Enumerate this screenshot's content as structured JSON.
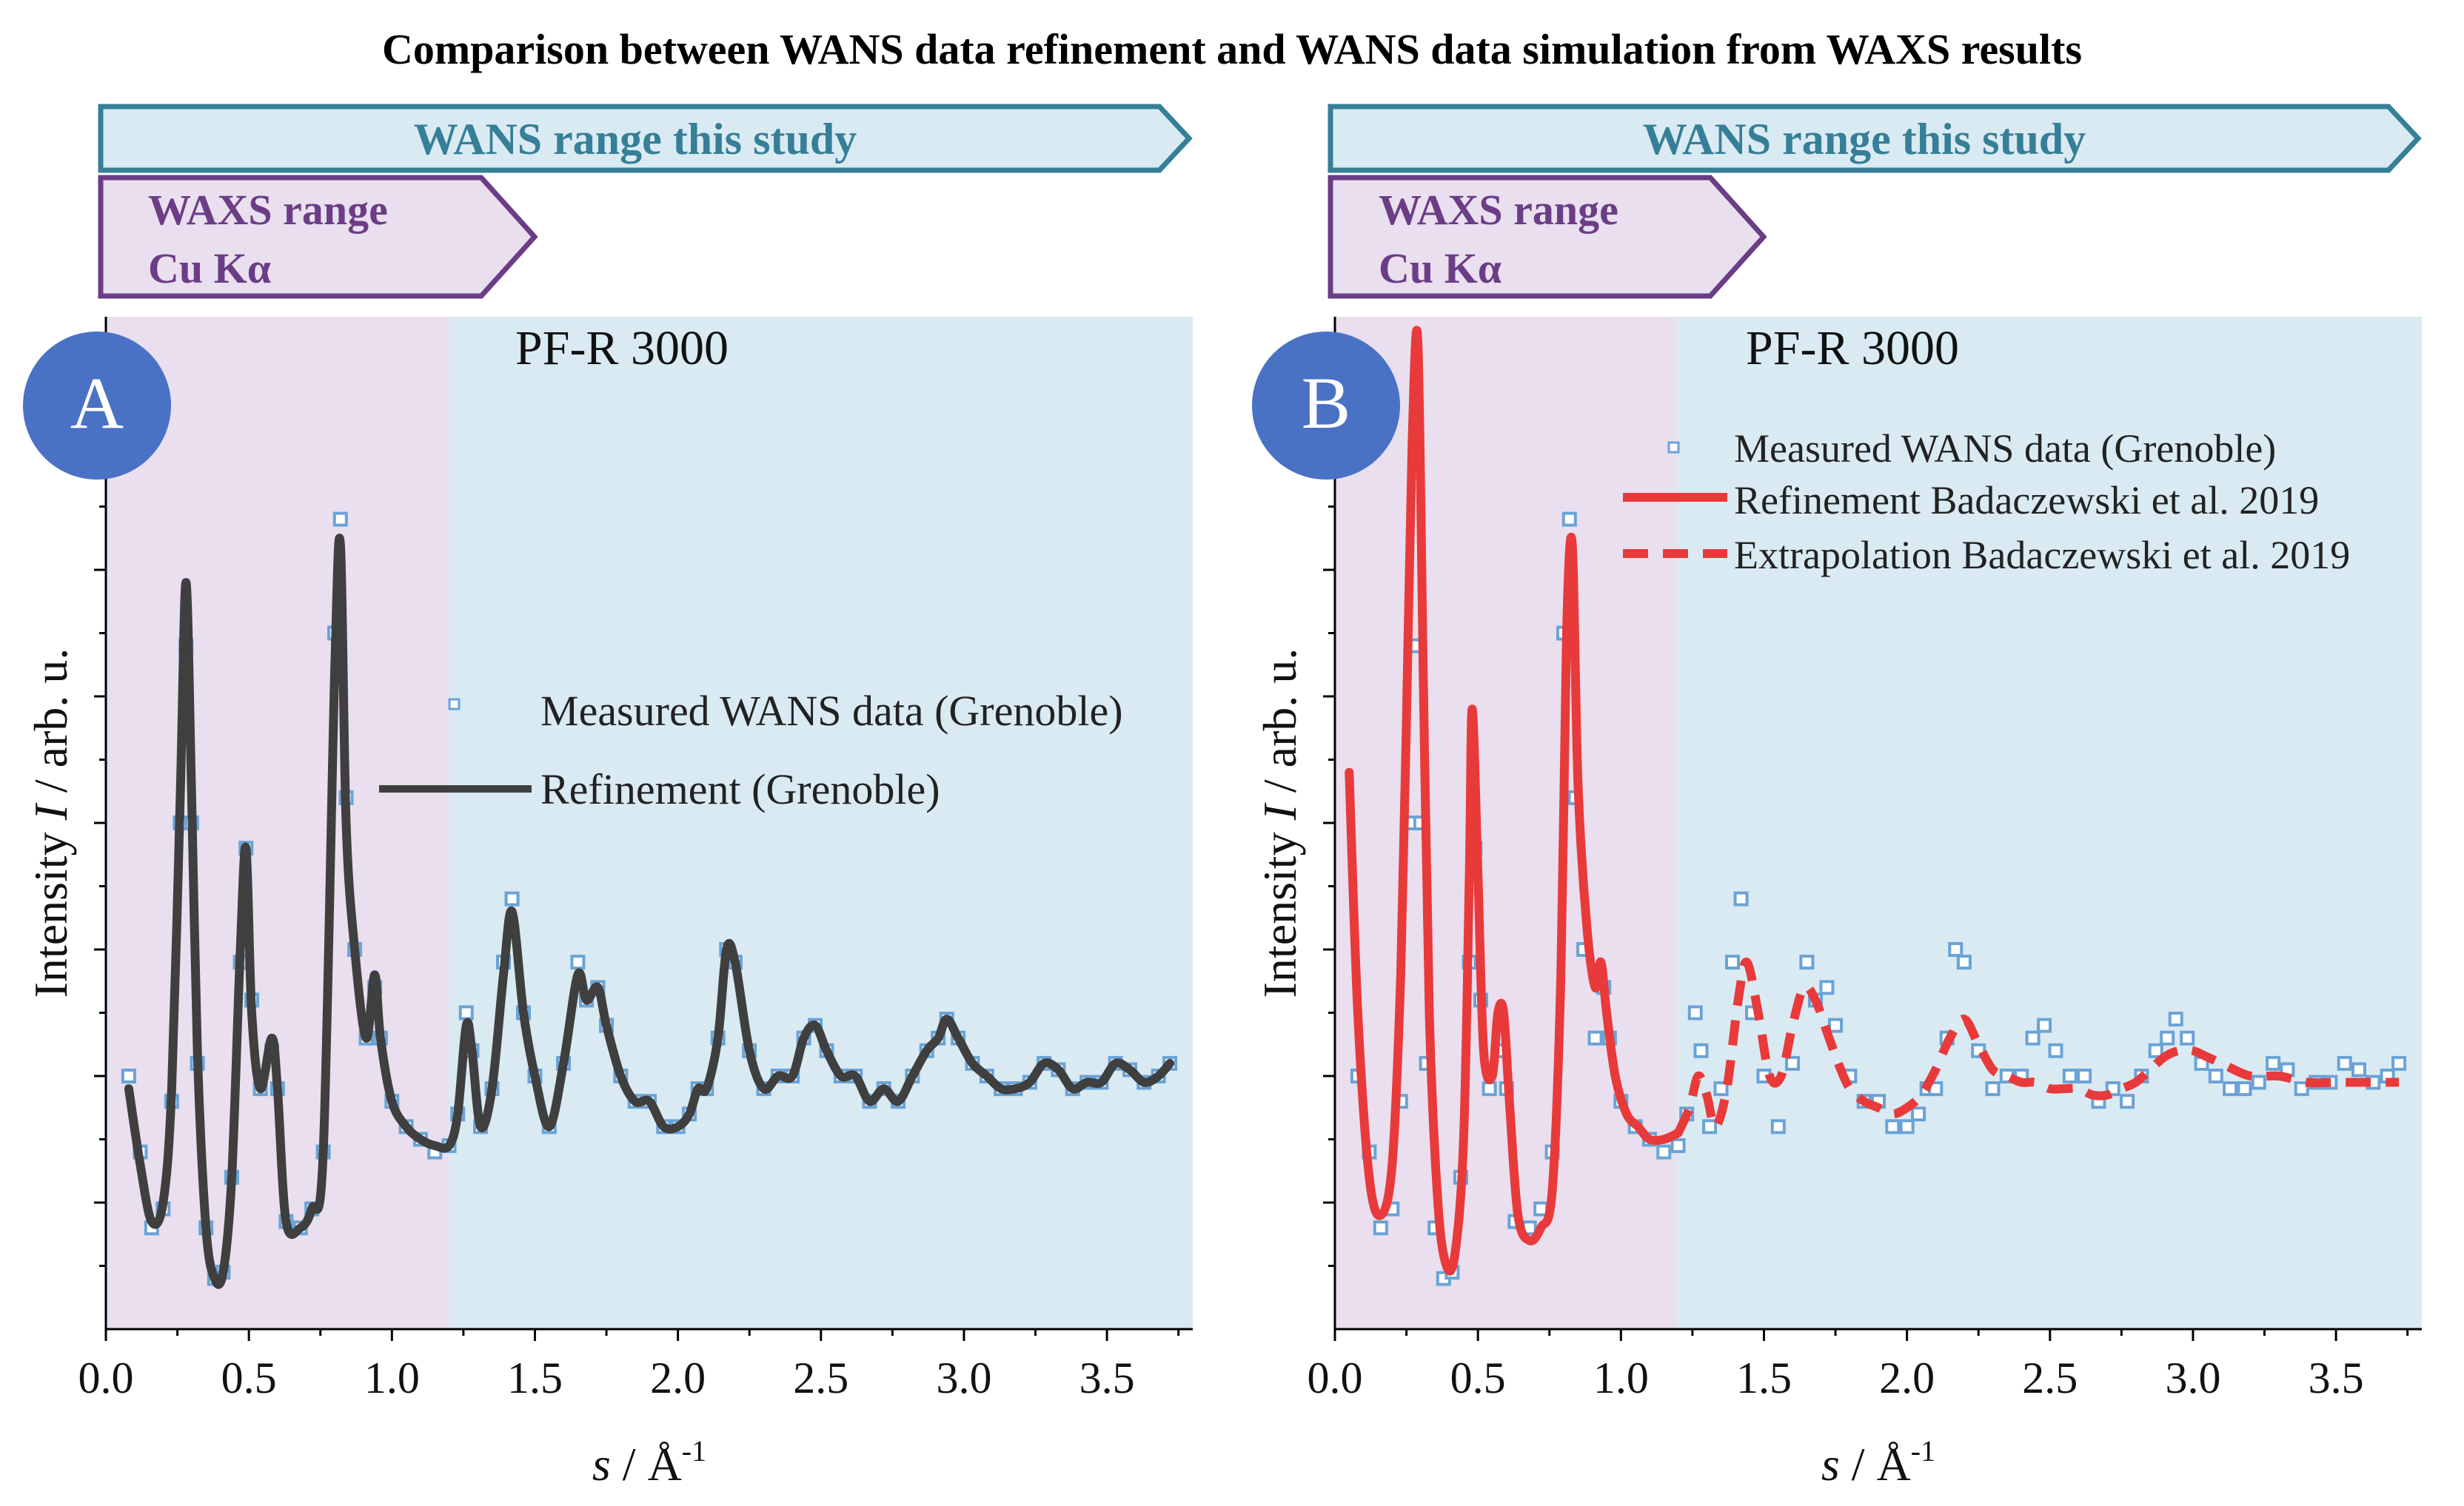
{
  "title": "Comparison between WANS data refinement and WANS data simulation from WAXS results",
  "colors": {
    "waxs_fill": "#e9dfee",
    "waxs_stroke": "#6b3d86",
    "waxs_text": "#6b3d86",
    "wans_fill": "#daeaf3",
    "wans_stroke": "#357f97",
    "wans_text": "#357f97",
    "badge": "#4a72c4",
    "measured": "#6aa3d6",
    "refine_grey": "#3f3f3f",
    "refine_red": "#e83a3a"
  },
  "chart_data": [
    {
      "type": "line",
      "panel_label": "A",
      "sample": "PF-R 3000",
      "wans_banner": "WANS range this study",
      "waxs_banner_line1": "WAXS range",
      "waxs_banner_line2": "Cu Kα",
      "xlabel_var": "s",
      "xlabel_sep": " / ",
      "xlabel_unit": "Å",
      "xlabel_exp": "-1",
      "ylabel_pre": "Intensity ",
      "ylabel_var": "I",
      "ylabel_post": " / arb. u.",
      "xlim": [
        0.0,
        3.8
      ],
      "ylim": [
        0,
        8
      ],
      "xticks": [
        "0.0",
        "0.5",
        "1.0",
        "1.5",
        "2.0",
        "2.5",
        "3.0",
        "3.5"
      ],
      "waxs_region": [
        0.0,
        1.2
      ],
      "wans_region": [
        1.2,
        3.8
      ],
      "legend": [
        {
          "label": "Measured WANS data (Grenoble)",
          "style": "squares"
        },
        {
          "label": "Refinement (Grenoble)",
          "style": "solid-grey"
        }
      ],
      "series": [
        {
          "name": "Measured WANS data (Grenoble)",
          "x": [
            0.08,
            0.12,
            0.16,
            0.2,
            0.23,
            0.26,
            0.28,
            0.3,
            0.32,
            0.35,
            0.38,
            0.41,
            0.44,
            0.47,
            0.49,
            0.51,
            0.54,
            0.58,
            0.6,
            0.63,
            0.68,
            0.72,
            0.76,
            0.8,
            0.82,
            0.84,
            0.87,
            0.91,
            0.94,
            0.96,
            1.0,
            1.05,
            1.1,
            1.15,
            1.2,
            1.23,
            1.26,
            1.28,
            1.31,
            1.35,
            1.39,
            1.42,
            1.46,
            1.5,
            1.55,
            1.6,
            1.65,
            1.68,
            1.72,
            1.75,
            1.8,
            1.85,
            1.9,
            1.95,
            2.0,
            2.04,
            2.07,
            2.1,
            2.14,
            2.17,
            2.2,
            2.25,
            2.3,
            2.35,
            2.4,
            2.44,
            2.48,
            2.52,
            2.57,
            2.62,
            2.67,
            2.72,
            2.77,
            2.82,
            2.87,
            2.91,
            2.94,
            2.98,
            3.03,
            3.08,
            3.13,
            3.18,
            3.23,
            3.28,
            3.33,
            3.38,
            3.43,
            3.48,
            3.53,
            3.58,
            3.63,
            3.68,
            3.72
          ],
          "y": [
            2.0,
            1.4,
            0.8,
            0.95,
            1.8,
            4.0,
            5.4,
            4.0,
            2.1,
            0.8,
            0.4,
            0.45,
            1.2,
            2.9,
            3.8,
            2.6,
            1.9,
            2.2,
            1.9,
            0.85,
            0.8,
            0.95,
            1.4,
            5.5,
            6.4,
            4.2,
            3.0,
            2.3,
            2.7,
            2.3,
            1.8,
            1.6,
            1.5,
            1.4,
            1.45,
            1.7,
            2.5,
            2.2,
            1.6,
            1.9,
            2.9,
            3.4,
            2.5,
            2.0,
            1.6,
            2.1,
            2.9,
            2.6,
            2.7,
            2.4,
            2.0,
            1.8,
            1.8,
            1.6,
            1.6,
            1.7,
            1.9,
            1.9,
            2.3,
            3.0,
            2.9,
            2.2,
            1.9,
            2.0,
            2.0,
            2.3,
            2.4,
            2.2,
            2.0,
            2.0,
            1.8,
            1.9,
            1.8,
            2.0,
            2.2,
            2.3,
            2.45,
            2.3,
            2.1,
            2.0,
            1.9,
            1.9,
            1.95,
            2.1,
            2.05,
            1.9,
            1.95,
            1.95,
            2.1,
            2.05,
            1.95,
            2.0,
            2.1
          ]
        },
        {
          "name": "Refinement (Grenoble)",
          "x": [
            0.08,
            0.12,
            0.16,
            0.2,
            0.23,
            0.26,
            0.28,
            0.3,
            0.32,
            0.35,
            0.38,
            0.41,
            0.44,
            0.47,
            0.49,
            0.51,
            0.54,
            0.58,
            0.6,
            0.63,
            0.68,
            0.72,
            0.76,
            0.8,
            0.82,
            0.84,
            0.87,
            0.91,
            0.94,
            0.96,
            1.0,
            1.05,
            1.1,
            1.15,
            1.2,
            1.23,
            1.26,
            1.28,
            1.31,
            1.35,
            1.39,
            1.42,
            1.46,
            1.5,
            1.55,
            1.6,
            1.65,
            1.68,
            1.72,
            1.75,
            1.8,
            1.85,
            1.9,
            1.95,
            2.0,
            2.04,
            2.07,
            2.1,
            2.14,
            2.17,
            2.2,
            2.25,
            2.3,
            2.35,
            2.4,
            2.44,
            2.48,
            2.52,
            2.57,
            2.62,
            2.67,
            2.72,
            2.77,
            2.82,
            2.87,
            2.91,
            2.94,
            2.98,
            3.03,
            3.08,
            3.13,
            3.18,
            3.23,
            3.28,
            3.33,
            3.38,
            3.43,
            3.48,
            3.53,
            3.58,
            3.63,
            3.68,
            3.72
          ],
          "y": [
            1.9,
            1.3,
            0.85,
            1.0,
            1.9,
            4.2,
            5.9,
            4.2,
            2.2,
            0.8,
            0.4,
            0.45,
            1.2,
            3.0,
            3.8,
            2.5,
            1.9,
            2.3,
            1.9,
            0.85,
            0.8,
            0.95,
            1.4,
            5.2,
            6.2,
            4.0,
            3.0,
            2.3,
            2.8,
            2.3,
            1.8,
            1.6,
            1.5,
            1.45,
            1.45,
            1.7,
            2.4,
            2.2,
            1.6,
            1.9,
            2.8,
            3.3,
            2.5,
            2.0,
            1.6,
            2.1,
            2.8,
            2.6,
            2.7,
            2.4,
            2.0,
            1.8,
            1.8,
            1.6,
            1.6,
            1.7,
            1.9,
            1.9,
            2.3,
            3.0,
            2.9,
            2.2,
            1.9,
            2.0,
            2.0,
            2.3,
            2.4,
            2.2,
            2.0,
            2.0,
            1.8,
            1.9,
            1.8,
            2.0,
            2.2,
            2.3,
            2.45,
            2.3,
            2.1,
            2.0,
            1.9,
            1.9,
            1.95,
            2.1,
            2.05,
            1.9,
            1.95,
            1.95,
            2.1,
            2.05,
            1.95,
            2.0,
            2.1
          ]
        }
      ]
    },
    {
      "type": "line",
      "panel_label": "B",
      "sample": "PF-R 3000",
      "wans_banner": "WANS range this study",
      "waxs_banner_line1": "WAXS range",
      "waxs_banner_line2": "Cu Kα",
      "xlabel_var": "s",
      "xlabel_sep": " / ",
      "xlabel_unit": "Å",
      "xlabel_exp": "-1",
      "ylabel_pre": "Intensity ",
      "ylabel_var": "I",
      "ylabel_post": " / arb. u.",
      "xlim": [
        0.0,
        3.8
      ],
      "ylim": [
        0,
        8
      ],
      "xticks": [
        "0.0",
        "0.5",
        "1.0",
        "1.5",
        "2.0",
        "2.5",
        "3.0",
        "3.5"
      ],
      "waxs_region": [
        0.0,
        1.2
      ],
      "wans_region": [
        1.2,
        3.8
      ],
      "legend": [
        {
          "label": "Measured WANS data (Grenoble)",
          "style": "squares"
        },
        {
          "label": "Refinement Badaczewski et al. 2019",
          "style": "solid-red"
        },
        {
          "label": "Extrapolation Badaczewski et al. 2019",
          "style": "dashed-red"
        }
      ],
      "series": [
        {
          "name": "Measured WANS data (Grenoble)",
          "x": [
            0.08,
            0.12,
            0.16,
            0.2,
            0.23,
            0.26,
            0.28,
            0.3,
            0.32,
            0.35,
            0.38,
            0.41,
            0.44,
            0.47,
            0.49,
            0.51,
            0.54,
            0.58,
            0.6,
            0.63,
            0.68,
            0.72,
            0.76,
            0.8,
            0.82,
            0.84,
            0.87,
            0.91,
            0.94,
            0.96,
            1.0,
            1.05,
            1.1,
            1.15,
            1.2,
            1.23,
            1.26,
            1.28,
            1.31,
            1.35,
            1.39,
            1.42,
            1.46,
            1.5,
            1.55,
            1.6,
            1.65,
            1.68,
            1.72,
            1.75,
            1.8,
            1.85,
            1.9,
            1.95,
            2.0,
            2.04,
            2.07,
            2.1,
            2.14,
            2.17,
            2.2,
            2.25,
            2.3,
            2.35,
            2.4,
            2.44,
            2.48,
            2.52,
            2.57,
            2.62,
            2.67,
            2.72,
            2.77,
            2.82,
            2.87,
            2.91,
            2.94,
            2.98,
            3.03,
            3.08,
            3.13,
            3.18,
            3.23,
            3.28,
            3.33,
            3.38,
            3.43,
            3.48,
            3.53,
            3.58,
            3.63,
            3.68,
            3.72
          ],
          "y": [
            2.0,
            1.4,
            0.8,
            0.95,
            1.8,
            4.0,
            5.4,
            4.0,
            2.1,
            0.8,
            0.4,
            0.45,
            1.2,
            2.9,
            3.8,
            2.6,
            1.9,
            2.2,
            1.9,
            0.85,
            0.8,
            0.95,
            1.4,
            5.5,
            6.4,
            4.2,
            3.0,
            2.3,
            2.7,
            2.3,
            1.8,
            1.6,
            1.5,
            1.4,
            1.45,
            1.7,
            2.5,
            2.2,
            1.6,
            1.9,
            2.9,
            3.4,
            2.5,
            2.0,
            1.6,
            2.1,
            2.9,
            2.6,
            2.7,
            2.4,
            2.0,
            1.8,
            1.8,
            1.6,
            1.6,
            1.7,
            1.9,
            1.9,
            2.3,
            3.0,
            2.9,
            2.2,
            1.9,
            2.0,
            2.0,
            2.3,
            2.4,
            2.2,
            2.0,
            2.0,
            1.8,
            1.9,
            1.8,
            2.0,
            2.2,
            2.3,
            2.45,
            2.3,
            2.1,
            2.0,
            1.9,
            1.9,
            1.95,
            2.1,
            2.05,
            1.9,
            1.95,
            1.95,
            2.1,
            2.05,
            1.95,
            2.0,
            2.1
          ]
        },
        {
          "name": "Refinement Badaczewski et al. 2019",
          "x": [
            0.05,
            0.08,
            0.12,
            0.16,
            0.2,
            0.23,
            0.25,
            0.27,
            0.29,
            0.31,
            0.33,
            0.36,
            0.39,
            0.42,
            0.45,
            0.47,
            0.48,
            0.5,
            0.52,
            0.55,
            0.57,
            0.59,
            0.61,
            0.64,
            0.68,
            0.72,
            0.76,
            0.79,
            0.81,
            0.83,
            0.85,
            0.88,
            0.91,
            0.93,
            0.95,
            0.98,
            1.02,
            1.06,
            1.1,
            1.15,
            1.2
          ],
          "y": [
            4.4,
            2.5,
            1.2,
            0.9,
            1.3,
            2.8,
            4.8,
            7.0,
            7.8,
            5.0,
            2.5,
            1.0,
            0.5,
            0.6,
            1.5,
            3.6,
            4.9,
            3.6,
            2.2,
            2.0,
            2.5,
            2.5,
            1.8,
            0.9,
            0.7,
            0.8,
            1.1,
            2.8,
            5.5,
            6.2,
            4.3,
            3.2,
            2.7,
            2.9,
            2.5,
            2.0,
            1.7,
            1.6,
            1.5,
            1.5,
            1.55
          ]
        },
        {
          "name": "Extrapolation Badaczewski et al. 2019",
          "x": [
            1.2,
            1.24,
            1.27,
            1.3,
            1.33,
            1.37,
            1.41,
            1.44,
            1.48,
            1.52,
            1.56,
            1.6,
            1.64,
            1.68,
            1.72,
            1.76,
            1.8,
            1.85,
            1.9,
            1.95,
            2.0,
            2.05,
            2.1,
            2.15,
            2.2,
            2.25,
            2.3,
            2.35,
            2.4,
            2.45,
            2.5,
            2.55,
            2.6,
            2.65,
            2.7,
            2.75,
            2.8,
            2.85,
            2.9,
            2.95,
            3.0,
            3.05,
            3.1,
            3.2,
            3.3,
            3.4,
            3.5,
            3.6,
            3.72
          ],
          "y": [
            1.55,
            1.75,
            2.0,
            1.85,
            1.6,
            1.9,
            2.6,
            2.9,
            2.5,
            2.0,
            2.0,
            2.4,
            2.7,
            2.6,
            2.35,
            2.1,
            1.9,
            1.8,
            1.75,
            1.7,
            1.75,
            1.85,
            2.05,
            2.3,
            2.45,
            2.25,
            2.05,
            2.0,
            1.95,
            1.95,
            1.9,
            1.9,
            1.9,
            1.85,
            1.85,
            1.9,
            1.95,
            2.05,
            2.15,
            2.2,
            2.2,
            2.15,
            2.1,
            2.0,
            2.0,
            1.95,
            1.95,
            1.95,
            1.95
          ]
        }
      ]
    }
  ]
}
